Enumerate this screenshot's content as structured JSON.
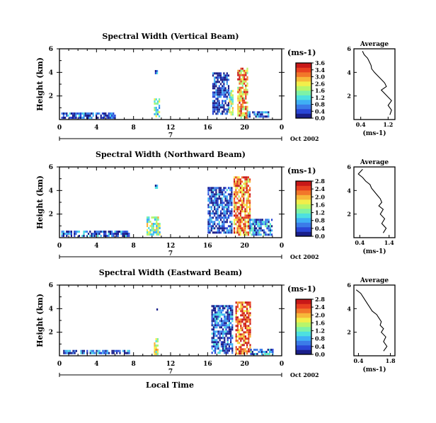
{
  "figure": {
    "xlabel": "Local Time",
    "date_label": "Oct 2002",
    "day_label": "7",
    "colorbar_unit": "(ms-1)",
    "avg_title": "Average",
    "avg_unit": "(ms-1)",
    "ylabel": "Height (km)",
    "colors": [
      "#1a1f8a",
      "#2a46d6",
      "#3b7be8",
      "#3fb0f5",
      "#4de0e0",
      "#7df2a6",
      "#b8f56a",
      "#f2ee4a",
      "#f7b83a",
      "#f2772a",
      "#e84020",
      "#c81818"
    ]
  },
  "chart_data": [
    {
      "type": "heatmap",
      "title": "Spectral Width (Vertical Beam)",
      "x_ticks": [
        "0",
        "4",
        "8",
        "12",
        "16",
        "20",
        "0"
      ],
      "y_ticks": [
        "6",
        "4",
        "2"
      ],
      "xlim": [
        0,
        24
      ],
      "ylim": [
        0,
        6
      ],
      "colorbar_ticks": [
        "3.6",
        "3.4",
        "3.0",
        "2.6",
        "1.6",
        "1.2",
        "0.8",
        "0.4",
        "0.0"
      ],
      "colorbar_range": [
        0,
        3.6
      ],
      "regions": [
        {
          "x0": 0.2,
          "x1": 6.0,
          "y0": 0.2,
          "y1": 0.6,
          "v": 0.5
        },
        {
          "x0": 10.2,
          "x1": 10.8,
          "y0": 0.3,
          "y1": 1.8,
          "v": 1.6
        },
        {
          "x0": 10.3,
          "x1": 10.5,
          "y0": 3.9,
          "y1": 4.2,
          "v": 0.6
        },
        {
          "x0": 16.5,
          "x1": 18.3,
          "y0": 0.4,
          "y1": 4.0,
          "v": 0.3
        },
        {
          "x0": 18.3,
          "x1": 18.7,
          "y0": 0.4,
          "y1": 2.5,
          "v": 1.8
        },
        {
          "x0": 19.2,
          "x1": 20.3,
          "y0": 0.2,
          "y1": 4.4,
          "v": 2.6
        },
        {
          "x0": 20.3,
          "x1": 22.5,
          "y0": 0.2,
          "y1": 0.7,
          "v": 0.6
        }
      ],
      "avg_x_ticks": [
        "0.4",
        "1.2"
      ],
      "avg_y_ticks": [
        "6",
        "4",
        "2"
      ],
      "avg_xlim": [
        0.2,
        1.4
      ],
      "avg_profile": {
        "x": [
          0.45,
          0.5,
          0.6,
          0.65,
          0.7,
          0.72,
          0.8,
          0.9,
          1.0,
          1.1,
          1.15,
          1.0,
          1.1,
          1.2,
          1.3,
          1.2,
          1.3,
          1.25
        ],
        "y": [
          5.8,
          5.5,
          5.2,
          4.9,
          4.6,
          4.3,
          4.0,
          3.7,
          3.4,
          3.1,
          2.8,
          2.5,
          2.2,
          1.9,
          1.6,
          1.2,
          0.8,
          0.4
        ]
      }
    },
    {
      "type": "heatmap",
      "title": "Spectral Width (Northward Beam)",
      "x_ticks": [
        "0",
        "4",
        "8",
        "12",
        "16",
        "20",
        "0"
      ],
      "y_ticks": [
        "6",
        "4",
        "2"
      ],
      "xlim": [
        0,
        24
      ],
      "ylim": [
        0,
        6
      ],
      "colorbar_ticks": [
        "2.8",
        "2.4",
        "2.0",
        "1.6",
        "1.2",
        "0.8",
        "0.4",
        "0.0"
      ],
      "colorbar_range": [
        0,
        2.8
      ],
      "regions": [
        {
          "x0": 0.2,
          "x1": 7.5,
          "y0": 0.2,
          "y1": 0.6,
          "v": 0.4
        },
        {
          "x0": 9.4,
          "x1": 10.8,
          "y0": 0.3,
          "y1": 1.8,
          "v": 1.4
        },
        {
          "x0": 10.3,
          "x1": 10.5,
          "y0": 4.3,
          "y1": 4.5,
          "v": 0.6
        },
        {
          "x0": 16.0,
          "x1": 18.6,
          "y0": 0.4,
          "y1": 4.3,
          "v": 0.3
        },
        {
          "x0": 18.8,
          "x1": 20.5,
          "y0": 0.3,
          "y1": 5.2,
          "v": 2.2
        },
        {
          "x0": 20.5,
          "x1": 23.0,
          "y0": 0.2,
          "y1": 1.6,
          "v": 0.6
        }
      ],
      "avg_x_ticks": [
        "0.4",
        "1.4"
      ],
      "avg_y_ticks": [
        "6",
        "4",
        "2"
      ],
      "avg_xlim": [
        0.2,
        1.6
      ],
      "avg_profile": {
        "x": [
          0.5,
          0.35,
          0.5,
          0.6,
          0.75,
          0.8,
          0.9,
          1.0,
          1.1,
          1.15,
          1.05,
          1.2,
          1.1,
          1.25,
          1.15,
          1.3,
          1.2
        ],
        "y": [
          5.8,
          5.4,
          5.1,
          4.8,
          4.5,
          4.2,
          3.9,
          3.6,
          3.3,
          3.0,
          2.7,
          2.4,
          2.0,
          1.6,
          1.2,
          0.8,
          0.4
        ]
      }
    },
    {
      "type": "heatmap",
      "title": "Spectral Width (Eastward Beam)",
      "x_ticks": [
        "0",
        "4",
        "8",
        "12",
        "16",
        "20",
        "0"
      ],
      "y_ticks": [
        "6",
        "4",
        "2"
      ],
      "xlim": [
        0,
        24
      ],
      "ylim": [
        0,
        6
      ],
      "colorbar_ticks": [
        "2.8",
        "2.4",
        "2.0",
        "1.6",
        "1.2",
        "0.8",
        "0.4",
        "0.0"
      ],
      "colorbar_range": [
        0,
        2.8
      ],
      "regions": [
        {
          "x0": 0.4,
          "x1": 7.5,
          "y0": 0.2,
          "y1": 0.5,
          "v": 0.4
        },
        {
          "x0": 10.2,
          "x1": 10.6,
          "y0": 0.2,
          "y1": 1.5,
          "v": 1.6
        },
        {
          "x0": 10.3,
          "x1": 10.5,
          "y0": 3.9,
          "y1": 4.2,
          "v": 0.6
        },
        {
          "x0": 16.4,
          "x1": 18.6,
          "y0": 0.3,
          "y1": 4.3,
          "v": 0.4
        },
        {
          "x0": 19.0,
          "x1": 20.6,
          "y0": 0.2,
          "y1": 4.6,
          "v": 2.4
        },
        {
          "x0": 20.6,
          "x1": 23.0,
          "y0": 0.2,
          "y1": 0.6,
          "v": 0.6
        }
      ],
      "avg_x_ticks": [
        "0.4",
        "1.8"
      ],
      "avg_y_ticks": [
        "6",
        "4",
        "2"
      ],
      "avg_xlim": [
        0.2,
        2.0
      ],
      "avg_profile": {
        "x": [
          0.3,
          0.5,
          0.6,
          0.7,
          0.8,
          0.9,
          1.0,
          1.2,
          1.3,
          1.4,
          1.35,
          1.5,
          1.4,
          1.6,
          1.5,
          1.65,
          1.5
        ],
        "y": [
          5.6,
          5.3,
          5.0,
          4.7,
          4.4,
          4.1,
          3.8,
          3.5,
          3.2,
          2.9,
          2.6,
          2.3,
          2.0,
          1.6,
          1.2,
          0.8,
          0.4
        ]
      }
    }
  ]
}
